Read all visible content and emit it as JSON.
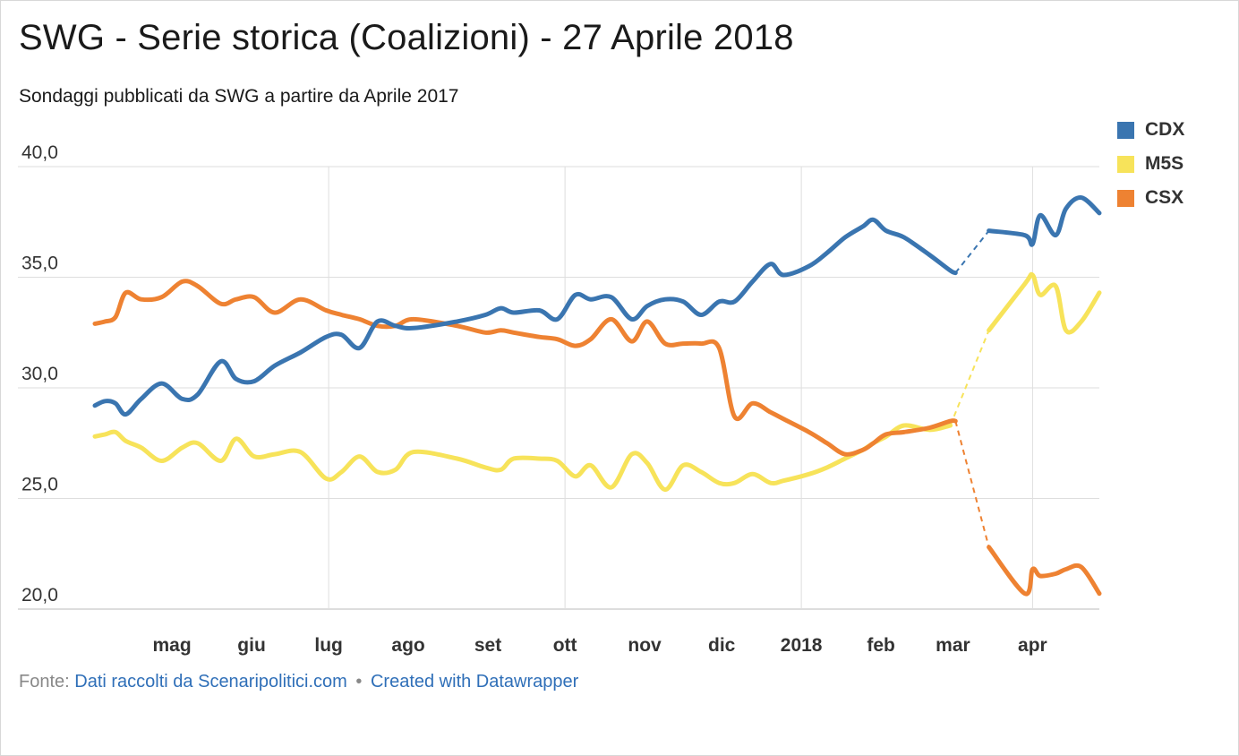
{
  "header": {
    "title": "SWG - Serie storica (Coalizioni) - 27 Aprile 2018",
    "subtitle": "Sondaggi pubblicati da SWG a partire da Aprile 2017"
  },
  "footer": {
    "prefix": "Fonte: ",
    "source_link": "Dati raccolti da Scenaripolitici.com",
    "separator": "•",
    "credit_link": "Created with Datawrapper"
  },
  "chart_data": {
    "type": "line",
    "ylim": [
      20,
      40
    ],
    "yticks": [
      "20,0",
      "25,0",
      "30,0",
      "35,0",
      "40,0"
    ],
    "ytick_values": [
      20,
      25,
      30,
      35,
      40
    ],
    "xlim": [
      "2017-04-01",
      "2018-04-27"
    ],
    "xticks": [
      {
        "label": "mag",
        "date": "2017-05-01"
      },
      {
        "label": "giu",
        "date": "2017-06-01"
      },
      {
        "label": "lug",
        "date": "2017-07-01"
      },
      {
        "label": "ago",
        "date": "2017-08-01"
      },
      {
        "label": "set",
        "date": "2017-09-01"
      },
      {
        "label": "ott",
        "date": "2017-10-01"
      },
      {
        "label": "nov",
        "date": "2017-11-01"
      },
      {
        "label": "dic",
        "date": "2017-12-01"
      },
      {
        "label": "2018",
        "date": "2018-01-01"
      },
      {
        "label": "feb",
        "date": "2018-02-01"
      },
      {
        "label": "mar",
        "date": "2018-03-01"
      },
      {
        "label": "apr",
        "date": "2018-04-01"
      }
    ],
    "grid_dates": [
      "2017-07-01",
      "2017-10-01",
      "2018-01-01",
      "2018-04-01"
    ],
    "legend_position": "top-right",
    "series": [
      {
        "name": "CDX",
        "color": "#3a75b0",
        "segments": [
          [
            [
              "2017-04-01",
              29.2
            ],
            [
              "2017-04-05",
              29.4
            ],
            [
              "2017-04-09",
              29.3
            ],
            [
              "2017-04-13",
              28.8
            ],
            [
              "2017-04-19",
              29.5
            ],
            [
              "2017-04-27",
              30.2
            ],
            [
              "2017-05-05",
              29.5
            ],
            [
              "2017-05-11",
              29.7
            ],
            [
              "2017-05-20",
              31.2
            ],
            [
              "2017-05-26",
              30.4
            ],
            [
              "2017-06-02",
              30.3
            ],
            [
              "2017-06-10",
              31.0
            ],
            [
              "2017-06-20",
              31.6
            ],
            [
              "2017-06-30",
              32.3
            ],
            [
              "2017-07-06",
              32.4
            ],
            [
              "2017-07-13",
              31.8
            ],
            [
              "2017-07-20",
              33.0
            ],
            [
              "2017-07-27",
              32.8
            ],
            [
              "2017-08-03",
              32.7
            ],
            [
              "2017-08-20",
              33.0
            ],
            [
              "2017-08-31",
              33.3
            ],
            [
              "2017-09-06",
              33.6
            ],
            [
              "2017-09-11",
              33.4
            ],
            [
              "2017-09-21",
              33.5
            ],
            [
              "2017-09-28",
              33.1
            ],
            [
              "2017-10-05",
              34.2
            ],
            [
              "2017-10-11",
              34.0
            ],
            [
              "2017-10-19",
              34.1
            ],
            [
              "2017-10-27",
              33.1
            ],
            [
              "2017-11-02",
              33.7
            ],
            [
              "2017-11-09",
              34.0
            ],
            [
              "2017-11-16",
              33.9
            ],
            [
              "2017-11-23",
              33.3
            ],
            [
              "2017-11-30",
              33.9
            ],
            [
              "2017-12-06",
              33.9
            ],
            [
              "2017-12-13",
              34.8
            ],
            [
              "2017-12-20",
              35.6
            ],
            [
              "2017-12-25",
              35.1
            ],
            [
              "2018-01-04",
              35.5
            ],
            [
              "2018-01-11",
              36.1
            ],
            [
              "2018-01-18",
              36.8
            ],
            [
              "2018-01-25",
              37.3
            ],
            [
              "2018-01-29",
              37.6
            ],
            [
              "2018-02-03",
              37.1
            ],
            [
              "2018-02-10",
              36.8
            ],
            [
              "2018-02-20",
              36.0
            ],
            [
              "2018-02-28",
              35.3
            ],
            [
              "2018-03-02",
              35.2
            ]
          ],
          [
            [
              "2018-03-15",
              37.1
            ],
            [
              "2018-03-29",
              36.9
            ],
            [
              "2018-04-01",
              36.5
            ],
            [
              "2018-04-04",
              37.8
            ],
            [
              "2018-04-10",
              36.9
            ],
            [
              "2018-04-14",
              38.1
            ],
            [
              "2018-04-20",
              38.6
            ],
            [
              "2018-04-27",
              37.9
            ]
          ]
        ],
        "gaps": [
          [
            [
              "2018-03-02",
              35.2
            ],
            [
              "2018-03-15",
              37.1
            ]
          ]
        ]
      },
      {
        "name": "M5S",
        "color": "#f7e35a",
        "segments": [
          [
            [
              "2017-04-01",
              27.8
            ],
            [
              "2017-04-05",
              27.9
            ],
            [
              "2017-04-09",
              28.0
            ],
            [
              "2017-04-13",
              27.6
            ],
            [
              "2017-04-19",
              27.3
            ],
            [
              "2017-04-27",
              26.7
            ],
            [
              "2017-05-05",
              27.3
            ],
            [
              "2017-05-11",
              27.5
            ],
            [
              "2017-05-20",
              26.7
            ],
            [
              "2017-05-26",
              27.7
            ],
            [
              "2017-06-02",
              26.9
            ],
            [
              "2017-06-10",
              27.0
            ],
            [
              "2017-06-20",
              27.1
            ],
            [
              "2017-06-30",
              25.9
            ],
            [
              "2017-07-06",
              26.2
            ],
            [
              "2017-07-13",
              26.9
            ],
            [
              "2017-07-20",
              26.2
            ],
            [
              "2017-07-27",
              26.3
            ],
            [
              "2017-08-03",
              27.1
            ],
            [
              "2017-08-20",
              26.8
            ],
            [
              "2017-08-31",
              26.4
            ],
            [
              "2017-09-06",
              26.3
            ],
            [
              "2017-09-11",
              26.8
            ],
            [
              "2017-09-21",
              26.8
            ],
            [
              "2017-09-28",
              26.7
            ],
            [
              "2017-10-05",
              26.0
            ],
            [
              "2017-10-11",
              26.5
            ],
            [
              "2017-10-19",
              25.5
            ],
            [
              "2017-10-27",
              27.0
            ],
            [
              "2017-11-02",
              26.6
            ],
            [
              "2017-11-09",
              25.4
            ],
            [
              "2017-11-16",
              26.5
            ],
            [
              "2017-11-23",
              26.2
            ],
            [
              "2017-11-30",
              25.7
            ],
            [
              "2017-12-06",
              25.7
            ],
            [
              "2017-12-13",
              26.1
            ],
            [
              "2017-12-20",
              25.7
            ],
            [
              "2017-12-25",
              25.8
            ],
            [
              "2018-01-04",
              26.1
            ],
            [
              "2018-01-11",
              26.4
            ],
            [
              "2018-01-18",
              26.8
            ],
            [
              "2018-01-25",
              27.2
            ],
            [
              "2018-01-29",
              27.5
            ],
            [
              "2018-02-03",
              27.8
            ],
            [
              "2018-02-10",
              28.3
            ],
            [
              "2018-02-20",
              28.1
            ],
            [
              "2018-02-28",
              28.3
            ]
          ],
          [
            [
              "2018-03-15",
              32.6
            ],
            [
              "2018-03-29",
              34.7
            ],
            [
              "2018-04-01",
              35.1
            ],
            [
              "2018-04-04",
              34.2
            ],
            [
              "2018-04-10",
              34.6
            ],
            [
              "2018-04-14",
              32.6
            ],
            [
              "2018-04-20",
              33.0
            ],
            [
              "2018-04-27",
              34.3
            ]
          ]
        ],
        "gaps": [
          [
            [
              "2018-02-28",
              28.3
            ],
            [
              "2018-03-15",
              32.6
            ]
          ]
        ]
      },
      {
        "name": "CSX",
        "color": "#ee8232",
        "segments": [
          [
            [
              "2017-04-01",
              32.9
            ],
            [
              "2017-04-05",
              33.0
            ],
            [
              "2017-04-09",
              33.2
            ],
            [
              "2017-04-13",
              34.3
            ],
            [
              "2017-04-19",
              34.0
            ],
            [
              "2017-04-27",
              34.1
            ],
            [
              "2017-05-05",
              34.8
            ],
            [
              "2017-05-11",
              34.6
            ],
            [
              "2017-05-20",
              33.8
            ],
            [
              "2017-05-26",
              34.0
            ],
            [
              "2017-06-02",
              34.1
            ],
            [
              "2017-06-10",
              33.4
            ],
            [
              "2017-06-20",
              34.0
            ],
            [
              "2017-06-30",
              33.5
            ],
            [
              "2017-07-06",
              33.3
            ],
            [
              "2017-07-13",
              33.1
            ],
            [
              "2017-07-20",
              32.8
            ],
            [
              "2017-07-27",
              32.8
            ],
            [
              "2017-08-03",
              33.1
            ],
            [
              "2017-08-20",
              32.8
            ],
            [
              "2017-08-31",
              32.5
            ],
            [
              "2017-09-06",
              32.6
            ],
            [
              "2017-09-11",
              32.5
            ],
            [
              "2017-09-21",
              32.3
            ],
            [
              "2017-09-28",
              32.2
            ],
            [
              "2017-10-05",
              31.9
            ],
            [
              "2017-10-11",
              32.2
            ],
            [
              "2017-10-19",
              33.1
            ],
            [
              "2017-10-27",
              32.1
            ],
            [
              "2017-11-02",
              33.0
            ],
            [
              "2017-11-09",
              32.0
            ],
            [
              "2017-11-16",
              32.0
            ],
            [
              "2017-11-23",
              32.0
            ],
            [
              "2017-11-30",
              31.8
            ],
            [
              "2017-12-06",
              28.7
            ],
            [
              "2017-12-13",
              29.3
            ],
            [
              "2017-12-20",
              28.9
            ],
            [
              "2017-12-25",
              28.6
            ],
            [
              "2018-01-04",
              28.0
            ],
            [
              "2018-01-11",
              27.5
            ],
            [
              "2018-01-18",
              27.0
            ],
            [
              "2018-01-25",
              27.2
            ],
            [
              "2018-01-29",
              27.5
            ],
            [
              "2018-02-03",
              27.9
            ],
            [
              "2018-02-10",
              28.0
            ],
            [
              "2018-02-20",
              28.2
            ],
            [
              "2018-02-28",
              28.5
            ],
            [
              "2018-03-02",
              28.5
            ]
          ],
          [
            [
              "2018-03-15",
              22.8
            ],
            [
              "2018-03-29",
              20.7
            ],
            [
              "2018-04-01",
              21.8
            ],
            [
              "2018-04-04",
              21.5
            ],
            [
              "2018-04-10",
              21.6
            ],
            [
              "2018-04-14",
              21.8
            ],
            [
              "2018-04-20",
              21.9
            ],
            [
              "2018-04-27",
              20.7
            ]
          ]
        ],
        "gaps": [
          [
            [
              "2018-03-02",
              28.5
            ],
            [
              "2018-03-15",
              22.8
            ]
          ]
        ]
      }
    ]
  }
}
